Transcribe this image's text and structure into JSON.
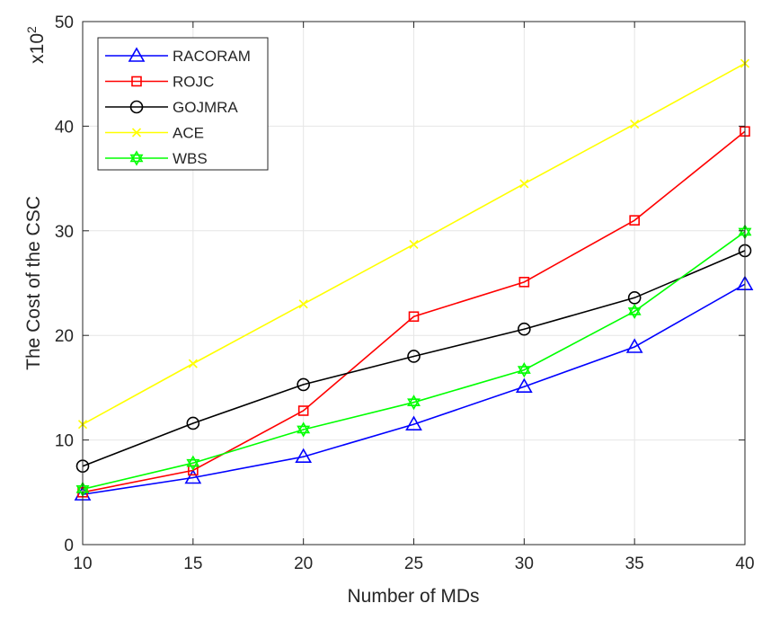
{
  "chart_data": {
    "type": "line",
    "title": "",
    "xlabel": "Number of MDs",
    "ylabel": "The Cost of the CSC",
    "y_multiplier": {
      "base": "x10",
      "exponent": "2"
    },
    "x": [
      10,
      15,
      20,
      25,
      30,
      35,
      40
    ],
    "xlim": [
      10,
      40
    ],
    "ylim": [
      0,
      50
    ],
    "x_ticks": [
      "10",
      "15",
      "20",
      "25",
      "30",
      "35",
      "40"
    ],
    "y_ticks": [
      "0",
      "10",
      "20",
      "30",
      "40",
      "50"
    ],
    "grid": true,
    "legend_position": "top-left",
    "series": [
      {
        "name": "RACORAM",
        "color": "#0000ff",
        "marker": "triangle",
        "values": [
          4.8,
          6.4,
          8.4,
          11.5,
          15.1,
          18.9,
          24.9
        ]
      },
      {
        "name": "ROJC",
        "color": "#ff0000",
        "marker": "square",
        "values": [
          5.0,
          7.1,
          12.8,
          21.8,
          25.1,
          31.0,
          39.5
        ]
      },
      {
        "name": "GOJMRA",
        "color": "#000000",
        "marker": "circle",
        "values": [
          7.5,
          11.6,
          15.3,
          18.0,
          20.6,
          23.6,
          28.1
        ]
      },
      {
        "name": "ACE",
        "color": "#ffff00",
        "marker": "x",
        "values": [
          11.5,
          17.3,
          23.0,
          28.7,
          34.5,
          40.2,
          46.0
        ]
      },
      {
        "name": "WBS",
        "color": "#00ff00",
        "marker": "hexagram",
        "values": [
          5.3,
          7.8,
          11.0,
          13.6,
          16.7,
          22.3,
          29.9
        ]
      }
    ]
  }
}
